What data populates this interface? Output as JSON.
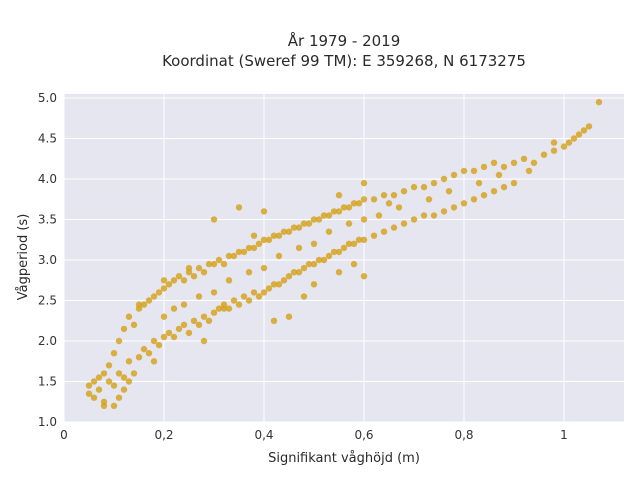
{
  "chart_data": {
    "type": "scatter",
    "title_lines": [
      "År 1979 - 2019",
      "Koordinat (Sweref 99 TM): E 359268, N 6173275"
    ],
    "xlabel": "Signifikant våghöjd (m)",
    "ylabel": "Vågperiod (s)",
    "xlim": [
      0,
      1.12
    ],
    "ylim": [
      1.0,
      5.05
    ],
    "xticks": [
      0,
      0.2,
      0.4,
      0.6,
      0.8,
      1
    ],
    "xtick_labels": [
      "0",
      "0,2",
      "0,4",
      "0,6",
      "0,8",
      "1"
    ],
    "yticks": [
      1.0,
      1.5,
      2.0,
      2.5,
      3.0,
      3.5,
      4.0,
      4.5,
      5.0
    ],
    "ytick_labels": [
      "1.0",
      "1.5",
      "2.0",
      "2.5",
      "3.0",
      "3.5",
      "4.0",
      "4.5",
      "5.0"
    ],
    "grid": true,
    "marker_color": "#D4A017",
    "background_color": "#E5E6EF",
    "series": [
      {
        "points": [
          [
            0.05,
            1.45
          ],
          [
            0.05,
            1.35
          ],
          [
            0.06,
            1.5
          ],
          [
            0.06,
            1.3
          ],
          [
            0.07,
            1.55
          ],
          [
            0.07,
            1.4
          ],
          [
            0.08,
            1.25
          ],
          [
            0.08,
            1.6
          ],
          [
            0.09,
            1.5
          ],
          [
            0.09,
            1.7
          ],
          [
            0.1,
            1.45
          ],
          [
            0.1,
            1.85
          ],
          [
            0.1,
            1.2
          ],
          [
            0.11,
            2.0
          ],
          [
            0.11,
            1.6
          ],
          [
            0.12,
            2.15
          ],
          [
            0.12,
            1.55
          ],
          [
            0.13,
            2.3
          ],
          [
            0.13,
            1.75
          ],
          [
            0.14,
            2.2
          ],
          [
            0.14,
            1.6
          ],
          [
            0.15,
            2.4
          ],
          [
            0.15,
            1.8
          ],
          [
            0.16,
            2.45
          ],
          [
            0.16,
            1.9
          ],
          [
            0.17,
            2.5
          ],
          [
            0.17,
            1.85
          ],
          [
            0.18,
            2.55
          ],
          [
            0.18,
            2.0
          ],
          [
            0.19,
            2.6
          ],
          [
            0.19,
            1.95
          ],
          [
            0.2,
            2.65
          ],
          [
            0.2,
            2.05
          ],
          [
            0.2,
            2.3
          ],
          [
            0.21,
            2.7
          ],
          [
            0.21,
            2.1
          ],
          [
            0.22,
            2.75
          ],
          [
            0.22,
            2.05
          ],
          [
            0.23,
            2.8
          ],
          [
            0.23,
            2.15
          ],
          [
            0.24,
            2.75
          ],
          [
            0.24,
            2.2
          ],
          [
            0.25,
            2.85
          ],
          [
            0.25,
            2.1
          ],
          [
            0.26,
            2.8
          ],
          [
            0.26,
            2.25
          ],
          [
            0.27,
            2.9
          ],
          [
            0.27,
            2.2
          ],
          [
            0.28,
            2.85
          ],
          [
            0.28,
            2.3
          ],
          [
            0.29,
            2.95
          ],
          [
            0.29,
            2.25
          ],
          [
            0.3,
            2.95
          ],
          [
            0.3,
            2.35
          ],
          [
            0.3,
            2.6
          ],
          [
            0.31,
            3.0
          ],
          [
            0.31,
            2.4
          ],
          [
            0.32,
            2.95
          ],
          [
            0.32,
            2.45
          ],
          [
            0.33,
            3.05
          ],
          [
            0.33,
            2.4
          ],
          [
            0.34,
            3.05
          ],
          [
            0.34,
            2.5
          ],
          [
            0.35,
            3.1
          ],
          [
            0.35,
            2.45
          ],
          [
            0.36,
            3.1
          ],
          [
            0.36,
            2.55
          ],
          [
            0.37,
            3.15
          ],
          [
            0.37,
            2.5
          ],
          [
            0.38,
            3.15
          ],
          [
            0.38,
            2.6
          ],
          [
            0.39,
            3.2
          ],
          [
            0.39,
            2.55
          ],
          [
            0.4,
            3.25
          ],
          [
            0.4,
            2.6
          ],
          [
            0.4,
            2.9
          ],
          [
            0.41,
            3.25
          ],
          [
            0.41,
            2.65
          ],
          [
            0.42,
            3.3
          ],
          [
            0.42,
            2.7
          ],
          [
            0.43,
            3.3
          ],
          [
            0.43,
            2.7
          ],
          [
            0.44,
            3.35
          ],
          [
            0.44,
            2.75
          ],
          [
            0.45,
            3.35
          ],
          [
            0.45,
            2.8
          ],
          [
            0.46,
            3.4
          ],
          [
            0.46,
            2.85
          ],
          [
            0.47,
            3.4
          ],
          [
            0.47,
            2.85
          ],
          [
            0.48,
            3.45
          ],
          [
            0.48,
            2.9
          ],
          [
            0.49,
            3.45
          ],
          [
            0.49,
            2.95
          ],
          [
            0.5,
            3.5
          ],
          [
            0.5,
            2.95
          ],
          [
            0.5,
            3.2
          ],
          [
            0.51,
            3.5
          ],
          [
            0.51,
            3.0
          ],
          [
            0.52,
            3.55
          ],
          [
            0.52,
            3.0
          ],
          [
            0.53,
            3.55
          ],
          [
            0.53,
            3.05
          ],
          [
            0.54,
            3.6
          ],
          [
            0.54,
            3.1
          ],
          [
            0.55,
            3.6
          ],
          [
            0.55,
            3.1
          ],
          [
            0.56,
            3.65
          ],
          [
            0.56,
            3.15
          ],
          [
            0.57,
            3.65
          ],
          [
            0.57,
            3.2
          ],
          [
            0.58,
            3.7
          ],
          [
            0.58,
            3.2
          ],
          [
            0.59,
            3.7
          ],
          [
            0.59,
            3.25
          ],
          [
            0.6,
            3.75
          ],
          [
            0.6,
            3.25
          ],
          [
            0.6,
            3.5
          ],
          [
            0.62,
            3.75
          ],
          [
            0.62,
            3.3
          ],
          [
            0.64,
            3.8
          ],
          [
            0.64,
            3.35
          ],
          [
            0.66,
            3.8
          ],
          [
            0.66,
            3.4
          ],
          [
            0.68,
            3.85
          ],
          [
            0.68,
            3.45
          ],
          [
            0.7,
            3.9
          ],
          [
            0.7,
            3.5
          ],
          [
            0.72,
            3.9
          ],
          [
            0.72,
            3.55
          ],
          [
            0.74,
            3.95
          ],
          [
            0.74,
            3.55
          ],
          [
            0.76,
            4.0
          ],
          [
            0.76,
            3.6
          ],
          [
            0.78,
            4.05
          ],
          [
            0.78,
            3.65
          ],
          [
            0.8,
            4.1
          ],
          [
            0.8,
            3.7
          ],
          [
            0.82,
            4.1
          ],
          [
            0.82,
            3.75
          ],
          [
            0.84,
            4.15
          ],
          [
            0.84,
            3.8
          ],
          [
            0.86,
            4.2
          ],
          [
            0.86,
            3.85
          ],
          [
            0.88,
            4.15
          ],
          [
            0.88,
            3.9
          ],
          [
            0.9,
            4.2
          ],
          [
            0.9,
            3.95
          ],
          [
            0.92,
            4.25
          ],
          [
            0.94,
            4.2
          ],
          [
            0.96,
            4.3
          ],
          [
            0.98,
            4.35
          ],
          [
            1.0,
            4.4
          ],
          [
            1.01,
            4.45
          ],
          [
            1.02,
            4.5
          ],
          [
            1.03,
            4.55
          ],
          [
            1.04,
            4.6
          ],
          [
            1.05,
            4.65
          ],
          [
            1.07,
            4.95
          ],
          [
            0.98,
            4.45
          ],
          [
            0.35,
            3.65
          ],
          [
            0.4,
            3.6
          ],
          [
            0.3,
            3.5
          ],
          [
            0.25,
            2.9
          ],
          [
            0.55,
            3.8
          ],
          [
            0.6,
            3.95
          ],
          [
            0.65,
            3.7
          ],
          [
            0.2,
            2.75
          ],
          [
            0.15,
            2.45
          ],
          [
            0.45,
            2.3
          ],
          [
            0.5,
            2.7
          ],
          [
            0.55,
            2.85
          ],
          [
            0.58,
            2.95
          ],
          [
            0.6,
            2.8
          ],
          [
            0.42,
            2.25
          ],
          [
            0.48,
            2.55
          ],
          [
            0.38,
            3.3
          ],
          [
            0.32,
            2.4
          ],
          [
            0.28,
            2.0
          ],
          [
            0.18,
            1.75
          ],
          [
            0.12,
            1.4
          ],
          [
            0.08,
            1.2
          ],
          [
            0.11,
            1.3
          ],
          [
            0.13,
            1.5
          ],
          [
            0.27,
            2.55
          ],
          [
            0.33,
            2.75
          ],
          [
            0.37,
            2.85
          ],
          [
            0.43,
            3.05
          ],
          [
            0.47,
            3.15
          ],
          [
            0.53,
            3.35
          ],
          [
            0.57,
            3.45
          ],
          [
            0.63,
            3.55
          ],
          [
            0.67,
            3.65
          ],
          [
            0.73,
            3.75
          ],
          [
            0.77,
            3.85
          ],
          [
            0.83,
            3.95
          ],
          [
            0.87,
            4.05
          ],
          [
            0.93,
            4.1
          ],
          [
            0.24,
            2.45
          ],
          [
            0.22,
            2.4
          ]
        ]
      }
    ]
  }
}
